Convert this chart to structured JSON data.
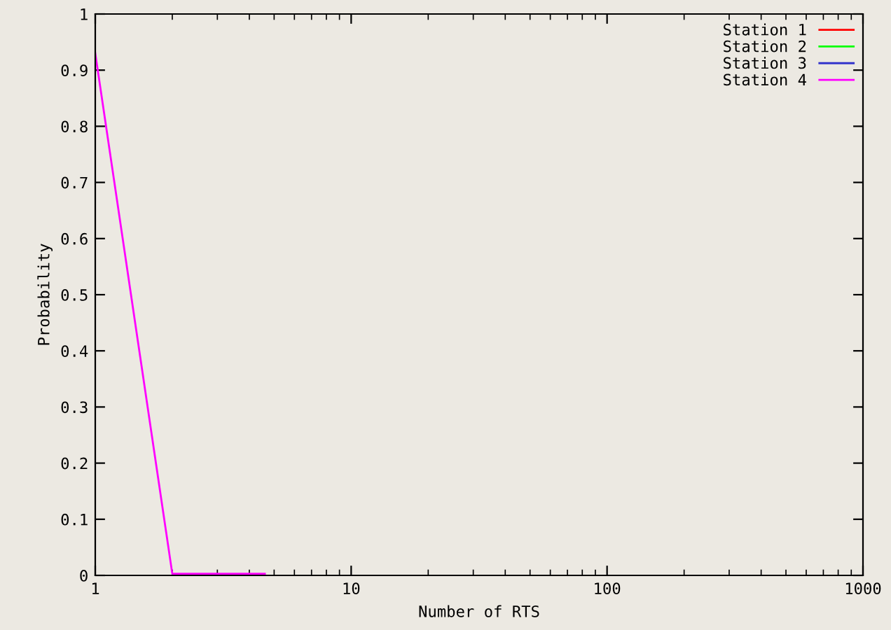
{
  "chart_data": {
    "type": "line",
    "xlabel": "Number of RTS",
    "ylabel": "Probability",
    "log": "x",
    "xlim": [
      1,
      1000
    ],
    "xticks": [
      1,
      10,
      100,
      1000
    ],
    "ylim": [
      0,
      1
    ],
    "yticks": [
      0,
      0.1,
      0.2,
      0.3,
      0.4,
      0.5,
      0.6,
      0.7,
      0.8,
      0.9,
      1
    ],
    "x": [
      1,
      2,
      4.6
    ],
    "series": [
      {
        "name": "Station 1",
        "color": "#ff0000",
        "values": [
          null,
          null,
          null
        ]
      },
      {
        "name": "Station 2",
        "color": "#00ff00",
        "values": [
          null,
          null,
          null
        ]
      },
      {
        "name": "Station 3",
        "color": "#3333cc",
        "values": [
          null,
          null,
          null
        ]
      },
      {
        "name": "Station 4",
        "color": "#ff00ff",
        "values": [
          0.93,
          0.003,
          0.003
        ]
      }
    ],
    "legend": "top right",
    "grid": false
  }
}
